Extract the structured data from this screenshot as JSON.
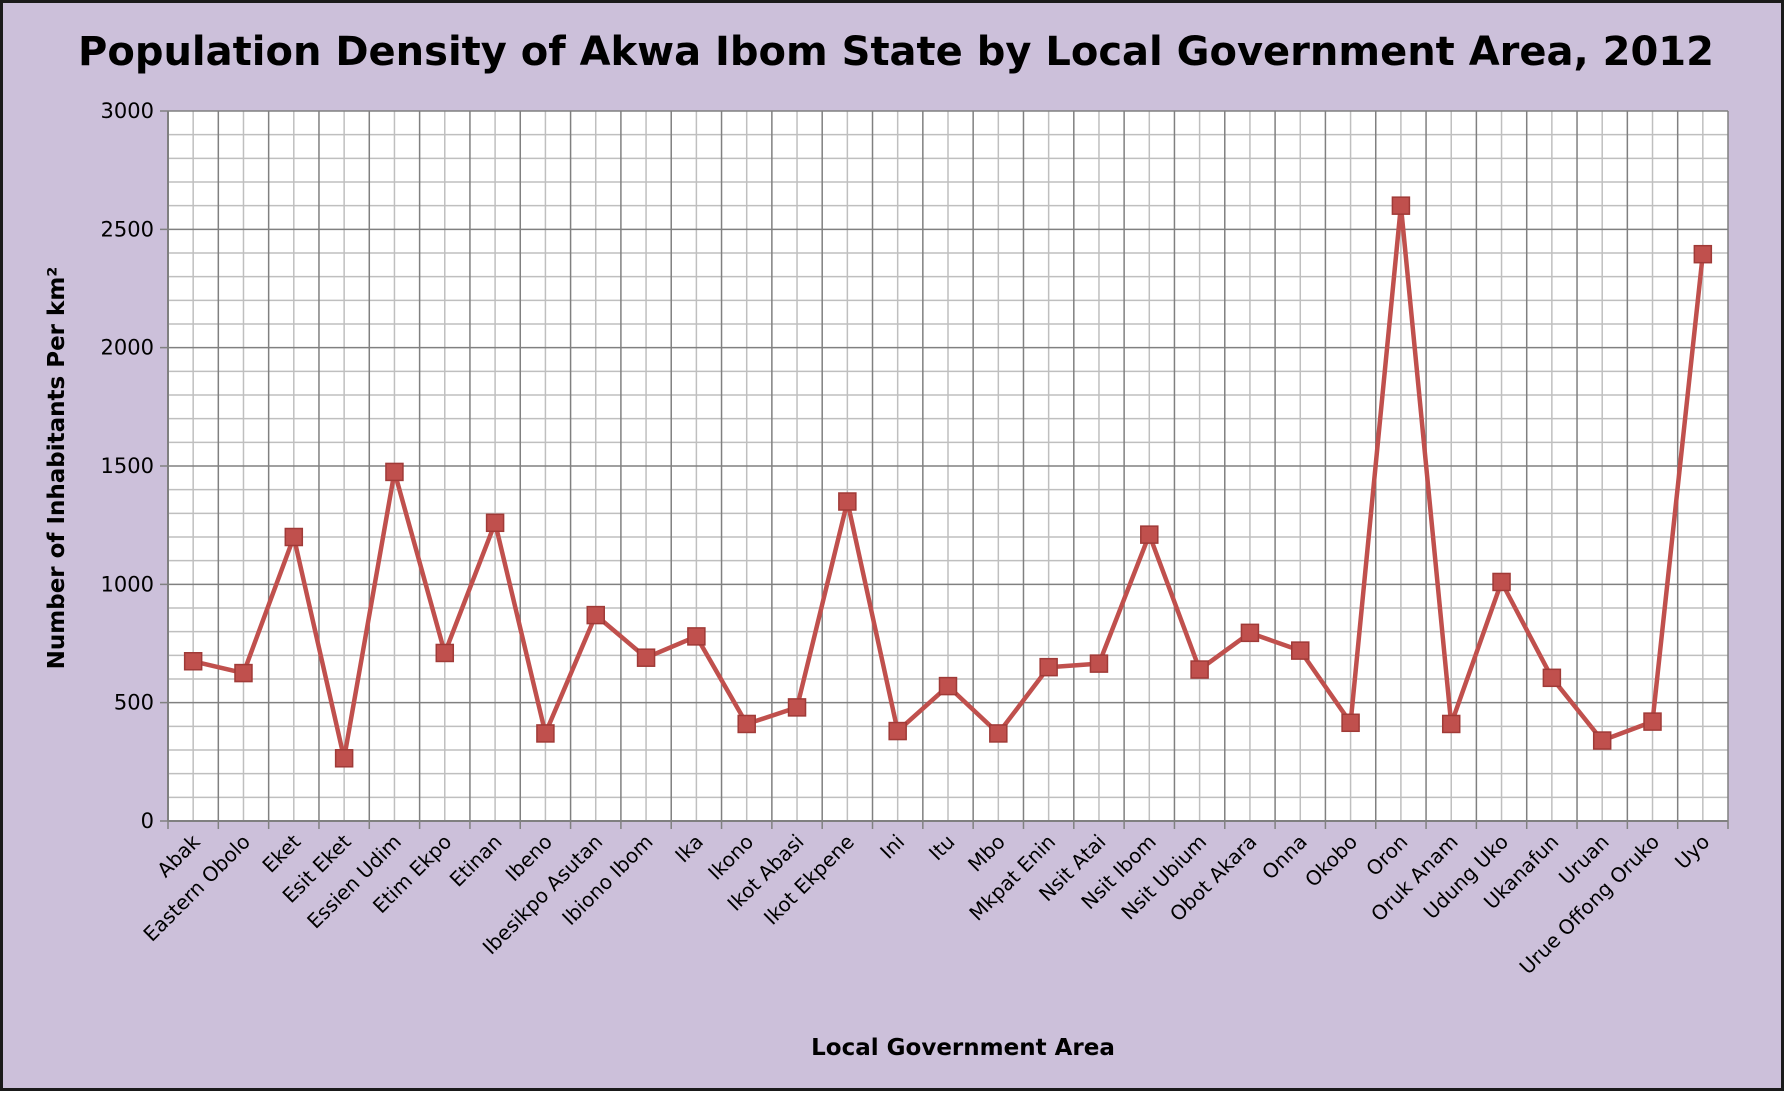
{
  "chart_data": {
    "type": "line",
    "title": "Population Density of Akwa Ibom State by Local Government Area, 2012",
    "xlabel": "Local Government Area",
    "ylabel": "Number of Inhabitants Per km²",
    "ylim": [
      0,
      3000
    ],
    "yticks": [
      "0",
      "500",
      "1000",
      "1500",
      "2000",
      "2500",
      "3000"
    ],
    "grid": true,
    "legend": "none",
    "categories": [
      "Abak",
      "Eastern Obolo",
      "Eket",
      "Esit Eket",
      "Essien Udim",
      "Etim Ekpo",
      "Etinan",
      "Ibeno",
      "Ibesikpo Asutan",
      "Ibiono Ibom",
      "Ika",
      "Ikono",
      "Ikot Abasi",
      "Ikot Ekpene",
      "Ini",
      "Itu",
      "Mbo",
      "Mkpat Enin",
      "Nsit Atai",
      "Nsit Ibom",
      "Nsit Ubium",
      "Obot Akara",
      "Onna",
      "Okobo",
      "Oron",
      "Oruk Anam",
      "Udung Uko",
      "Ukanafun",
      "Uruan",
      "Urue Offong Oruko",
      "Uyo"
    ],
    "series": [
      {
        "values": [
          675,
          625,
          1200,
          265,
          1475,
          710,
          1260,
          370,
          870,
          690,
          780,
          410,
          480,
          1350,
          380,
          570,
          370,
          650,
          665,
          1210,
          640,
          795,
          720,
          415,
          2600,
          410,
          1010,
          605,
          340,
          420,
          2395
        ]
      }
    ],
    "colors": {
      "background": "#ccc0da",
      "plot_area": "#ffffff",
      "grid_major": "#808080",
      "grid_minor": "#bfbfbf",
      "series": "#c0504d",
      "marker_fill": "#c0504d",
      "marker_stroke": "#a03a37",
      "border": "#1a1a1a"
    }
  }
}
